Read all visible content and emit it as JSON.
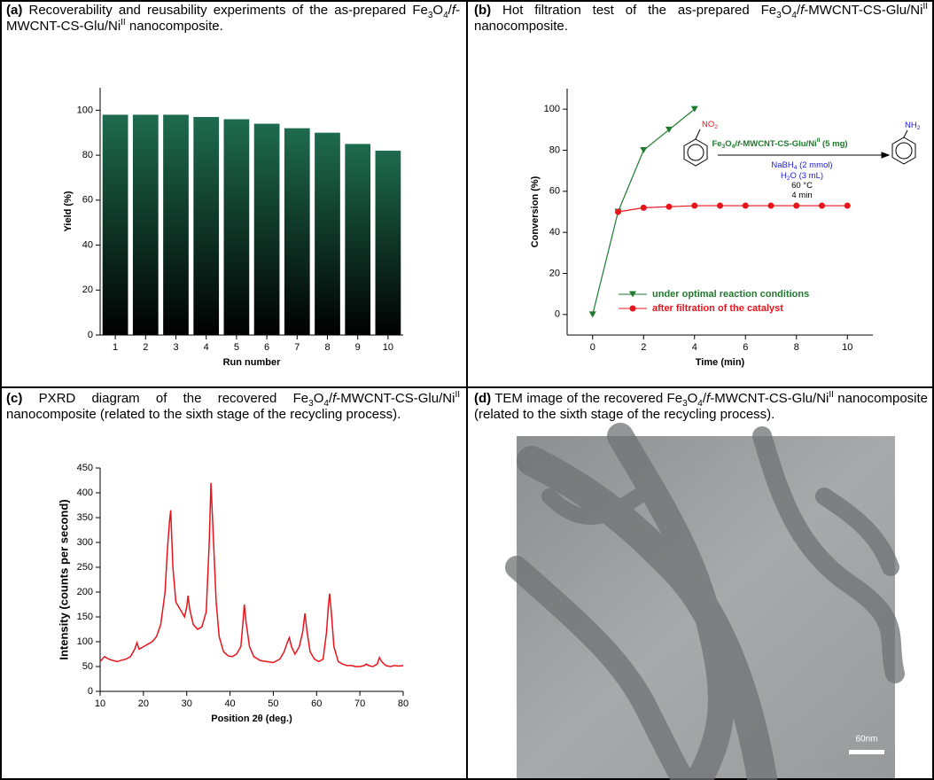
{
  "chart_data": [
    {
      "type": "bar",
      "label": "(a)",
      "title": [
        " Recoverability and reusability experiments of the as-prepared Fe",
        {
          "sub": "3"
        },
        "O",
        {
          "sub": "4"
        },
        "/",
        {
          "i": "f"
        },
        "-MWCNT-CS-Glu/Ni",
        {
          "sup": "II"
        },
        " nanocomposite."
      ],
      "categories": [
        "1",
        "2",
        "3",
        "4",
        "5",
        "6",
        "7",
        "8",
        "9",
        "10"
      ],
      "values": [
        98,
        98,
        98,
        97,
        96,
        94,
        92,
        90,
        85,
        82
      ],
      "color": "#1e6b4f",
      "gradient_to": "#000000",
      "ylim": [
        0,
        110
      ],
      "yticks": [
        0,
        20,
        40,
        60,
        80,
        100
      ],
      "xlabel": "Run number",
      "ylabel": "Yield (%)"
    },
    {
      "type": "line",
      "label": "(b)",
      "title": [
        " Hot filtration test of the as-prepared Fe",
        {
          "sub": "3"
        },
        "O",
        {
          "sub": "4"
        },
        "/",
        {
          "i": "f"
        },
        "-MWCNT-CS-Glu/Ni",
        {
          "sup": "II"
        },
        " nanocomposite."
      ],
      "xlim": [
        -1,
        11
      ],
      "xticks": [
        0,
        2,
        4,
        6,
        8,
        10
      ],
      "ylim": [
        -10,
        110
      ],
      "yticks": [
        0,
        20,
        40,
        60,
        80,
        100
      ],
      "xlabel": "Time (min)",
      "ylabel": "Conversion (%)",
      "series": [
        {
          "name": "under optimal reaction conditions",
          "color": "#1f7a2e",
          "marker": "triangle-down",
          "x": [
            0,
            1,
            2,
            3,
            4
          ],
          "values": [
            0,
            50,
            80,
            90,
            100
          ]
        },
        {
          "name": "after filtration of the catalyst",
          "color": "#e8141b",
          "marker": "circle",
          "x": [
            1,
            2,
            3,
            4,
            5,
            6,
            7,
            8,
            9,
            10
          ],
          "values": [
            50,
            52,
            52.5,
            53,
            53,
            53,
            53,
            53,
            53,
            53
          ]
        }
      ],
      "annotations": [
        {
          "parts": [
            "NO",
            {
              "sub": "2"
            }
          ],
          "color": "#e8141b"
        },
        {
          "parts": [
            "Fe",
            {
              "sub": "3"
            },
            "O",
            {
              "sub": "4"
            },
            "/",
            {
              "i": "f"
            },
            "-MWCNT-CS-Glu/Ni",
            {
              "sup": "II"
            },
            " (5 mg)"
          ],
          "color": "#1f7a2e",
          "bold": true
        },
        {
          "parts": [
            "NaBH",
            {
              "sub": "4"
            },
            " (2 mmol)"
          ],
          "color": "#1a1ae0"
        },
        {
          "parts": [
            "H",
            {
              "sub": "2"
            },
            "O (3 mL)"
          ],
          "color": "#1a1ae0"
        },
        {
          "parts": [
            "60 °C"
          ],
          "color": "#000000"
        },
        {
          "parts": [
            "4 min"
          ],
          "color": "#000000"
        },
        {
          "parts": [
            "NH",
            {
              "sub": "2"
            }
          ],
          "color": "#1a1ae0"
        }
      ]
    },
    {
      "type": "line",
      "label": "(c)",
      "title": [
        " PXRD diagram of the recovered Fe",
        {
          "sub": "3"
        },
        "O",
        {
          "sub": "4"
        },
        "/",
        {
          "i": "f"
        },
        "-MWCNT-CS-Glu/Ni",
        {
          "sup": "II"
        },
        " nanocomposite (related to the sixth stage of the recycling process)."
      ],
      "xlim": [
        10,
        80
      ],
      "xticks": [
        10,
        20,
        30,
        40,
        50,
        60,
        70,
        80
      ],
      "ylim": [
        0,
        450
      ],
      "yticks": [
        0,
        50,
        100,
        150,
        200,
        250,
        300,
        350,
        400,
        450
      ],
      "xlabel": "Position 2θ (deg.)",
      "ylabel": "Intensity (counts per second)",
      "series": [
        {
          "color": "#e8141b",
          "x": [
            10,
            11,
            12,
            13,
            14,
            15,
            16,
            17,
            18,
            18.5,
            19,
            20,
            21,
            22,
            23,
            24,
            25,
            25.5,
            26,
            26.3,
            26.8,
            27.5,
            28.5,
            29.5,
            30,
            30.3,
            30.7,
            31.5,
            32.5,
            33.5,
            34.5,
            35.2,
            35.6,
            36.1,
            36.8,
            37.5,
            38.5,
            39.5,
            40.5,
            41.5,
            42.5,
            43,
            43.3,
            43.7,
            44.5,
            45.5,
            47,
            48.5,
            50,
            51.5,
            52.5,
            53.3,
            53.7,
            54.2,
            55,
            56,
            56.8,
            57.3,
            57.8,
            58.5,
            59.5,
            60.5,
            61.5,
            62.3,
            62.7,
            63,
            63.4,
            64,
            65,
            66,
            67,
            68,
            69,
            70,
            71,
            71.5,
            72,
            73,
            74,
            74.5,
            75,
            76,
            77,
            78,
            79,
            80
          ],
          "values": [
            60,
            70,
            65,
            62,
            60,
            63,
            65,
            70,
            85,
            98,
            85,
            90,
            95,
            100,
            110,
            135,
            200,
            280,
            340,
            365,
            250,
            180,
            165,
            150,
            170,
            193,
            165,
            135,
            125,
            130,
            160,
            300,
            420,
            320,
            180,
            110,
            80,
            72,
            70,
            75,
            90,
            140,
            175,
            140,
            90,
            70,
            62,
            60,
            58,
            65,
            80,
            100,
            108,
            90,
            75,
            90,
            120,
            157,
            120,
            80,
            65,
            60,
            65,
            120,
            170,
            197,
            160,
            90,
            60,
            55,
            52,
            52,
            50,
            50,
            52,
            55,
            52,
            50,
            55,
            68,
            60,
            52,
            50,
            52,
            51,
            52
          ]
        }
      ]
    }
  ],
  "image_panel": {
    "label": "(d)",
    "title": [
      " TEM image of the recovered Fe",
      {
        "sub": "3"
      },
      "O",
      {
        "sub": "4"
      },
      "/",
      {
        "i": "f"
      },
      "-MWCNT-CS-Glu/Ni",
      {
        "sup": "II"
      },
      " nanocomposite (related to the sixth stage of the recycling process)."
    ],
    "scale_bar": "60nm"
  }
}
